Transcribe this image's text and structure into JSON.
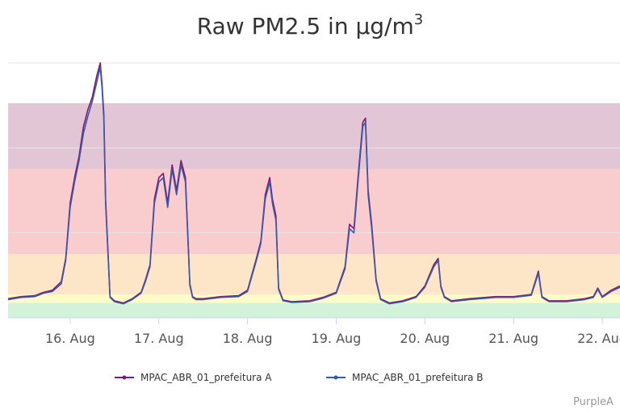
{
  "chart_data": {
    "type": "line",
    "title": "Raw PM2.5 in µg/m³",
    "title_parts": {
      "main": "Raw PM2.5 in µg/m",
      "sup": "3"
    },
    "x_ticks": [
      "16. Aug",
      "17. Aug",
      "18. Aug",
      "19. Aug",
      "20. Aug",
      "21. Aug",
      "22. Aug"
    ],
    "xlim": [
      15.3,
      22.2
    ],
    "ylim": [
      0,
      60
    ],
    "grid": true,
    "legend_position": "bottom",
    "aqi_bands": [
      {
        "from": 0,
        "to": 3.5,
        "color": "#d2f2d9"
      },
      {
        "from": 3.5,
        "to": 5.5,
        "color": "#fdfbc8"
      },
      {
        "from": 5.5,
        "to": 15,
        "color": "#fde6c8"
      },
      {
        "from": 15,
        "to": 35,
        "color": "#f9cdcd"
      },
      {
        "from": 35,
        "to": 50,
        "color": "#e3c6d6"
      },
      {
        "from": 50,
        "to": 50.5,
        "color": "#dcc7cc"
      }
    ],
    "series": [
      {
        "name": "MPAC_ABR_01_prefeitura A",
        "color": "#7b1a75",
        "x": [
          15.3,
          15.45,
          15.6,
          15.7,
          15.8,
          15.9,
          15.95,
          16.0,
          16.05,
          16.1,
          16.15,
          16.2,
          16.25,
          16.3,
          16.34,
          16.36,
          16.38,
          16.4,
          16.45,
          16.5,
          16.6,
          16.7,
          16.8,
          16.85,
          16.9,
          16.95,
          17.0,
          17.05,
          17.1,
          17.15,
          17.2,
          17.25,
          17.3,
          17.35,
          17.38,
          17.42,
          17.5,
          17.7,
          17.9,
          18.0,
          18.1,
          18.15,
          18.2,
          18.25,
          18.28,
          18.32,
          18.35,
          18.4,
          18.5,
          18.7,
          18.85,
          19.0,
          19.1,
          19.15,
          19.2,
          19.25,
          19.3,
          19.33,
          19.36,
          19.4,
          19.45,
          19.5,
          19.6,
          19.75,
          19.9,
          20.0,
          20.05,
          20.1,
          20.15,
          20.18,
          20.22,
          20.3,
          20.5,
          20.8,
          21.0,
          21.2,
          21.28,
          21.32,
          21.4,
          21.6,
          21.8,
          21.9,
          21.95,
          22.0,
          22.1,
          22.2
        ],
        "values": [
          4.5,
          5.0,
          5.2,
          6.0,
          6.5,
          8.5,
          14.0,
          27.0,
          33.0,
          38.0,
          45.0,
          49.0,
          52.0,
          57.0,
          60.0,
          55.0,
          48.0,
          28.0,
          5.0,
          4.0,
          3.5,
          4.5,
          6.0,
          9.0,
          12.5,
          28.0,
          33.0,
          34.0,
          27.0,
          36.0,
          30.0,
          37.0,
          33.0,
          8.0,
          5.0,
          4.5,
          4.5,
          5.0,
          5.2,
          6.5,
          14.0,
          18.0,
          29.0,
          33.0,
          28.0,
          24.0,
          7.0,
          4.2,
          3.8,
          4.0,
          4.8,
          6.0,
          12.0,
          22.0,
          21.0,
          34.0,
          46.0,
          47.0,
          30.0,
          22.0,
          9.0,
          4.5,
          3.5,
          4.0,
          5.0,
          7.5,
          10.0,
          12.5,
          14.0,
          7.5,
          5.0,
          4.0,
          4.5,
          5.0,
          5.0,
          5.5,
          11.0,
          5.0,
          4.0,
          4.0,
          4.5,
          5.0,
          7.0,
          5.0,
          6.5,
          7.5
        ]
      },
      {
        "name": "MPAC_ABR_01_prefeitura B",
        "color": "#3b57a8",
        "x": [
          15.3,
          15.45,
          15.6,
          15.7,
          15.8,
          15.9,
          15.95,
          16.0,
          16.05,
          16.1,
          16.15,
          16.2,
          16.25,
          16.3,
          16.34,
          16.36,
          16.38,
          16.4,
          16.45,
          16.5,
          16.6,
          16.7,
          16.8,
          16.85,
          16.9,
          16.95,
          17.0,
          17.05,
          17.1,
          17.15,
          17.2,
          17.25,
          17.3,
          17.35,
          17.38,
          17.42,
          17.5,
          17.7,
          17.9,
          18.0,
          18.1,
          18.15,
          18.2,
          18.25,
          18.28,
          18.32,
          18.35,
          18.4,
          18.5,
          18.7,
          18.85,
          19.0,
          19.1,
          19.15,
          19.2,
          19.25,
          19.3,
          19.33,
          19.36,
          19.4,
          19.45,
          19.5,
          19.6,
          19.75,
          19.9,
          20.0,
          20.05,
          20.1,
          20.15,
          20.18,
          20.22,
          20.3,
          20.5,
          20.8,
          21.0,
          21.2,
          21.28,
          21.32,
          21.4,
          21.6,
          21.8,
          21.9,
          21.95,
          22.0,
          22.1,
          22.2
        ],
        "values": [
          4.3,
          4.8,
          5.0,
          5.8,
          6.2,
          8.0,
          13.5,
          26.0,
          32.0,
          37.0,
          43.5,
          47.5,
          51.0,
          55.5,
          59.0,
          54.0,
          47.0,
          27.0,
          4.8,
          3.8,
          3.3,
          4.3,
          5.8,
          8.6,
          12.0,
          27.0,
          32.0,
          33.0,
          26.0,
          35.0,
          29.0,
          36.0,
          32.0,
          7.6,
          4.8,
          4.3,
          4.3,
          4.8,
          5.0,
          6.2,
          13.5,
          17.5,
          28.0,
          32.0,
          27.0,
          23.0,
          6.7,
          4.0,
          3.6,
          3.8,
          4.6,
          5.8,
          11.5,
          21.0,
          20.0,
          33.0,
          45.0,
          46.0,
          29.0,
          21.0,
          8.6,
          4.3,
          3.3,
          3.8,
          4.8,
          7.2,
          9.6,
          12.0,
          13.5,
          7.2,
          4.8,
          3.8,
          4.3,
          4.8,
          4.8,
          5.3,
          10.5,
          4.8,
          3.8,
          3.8,
          4.3,
          4.8,
          6.7,
          4.8,
          6.2,
          7.2
        ]
      }
    ]
  },
  "credit": "PurpleA"
}
